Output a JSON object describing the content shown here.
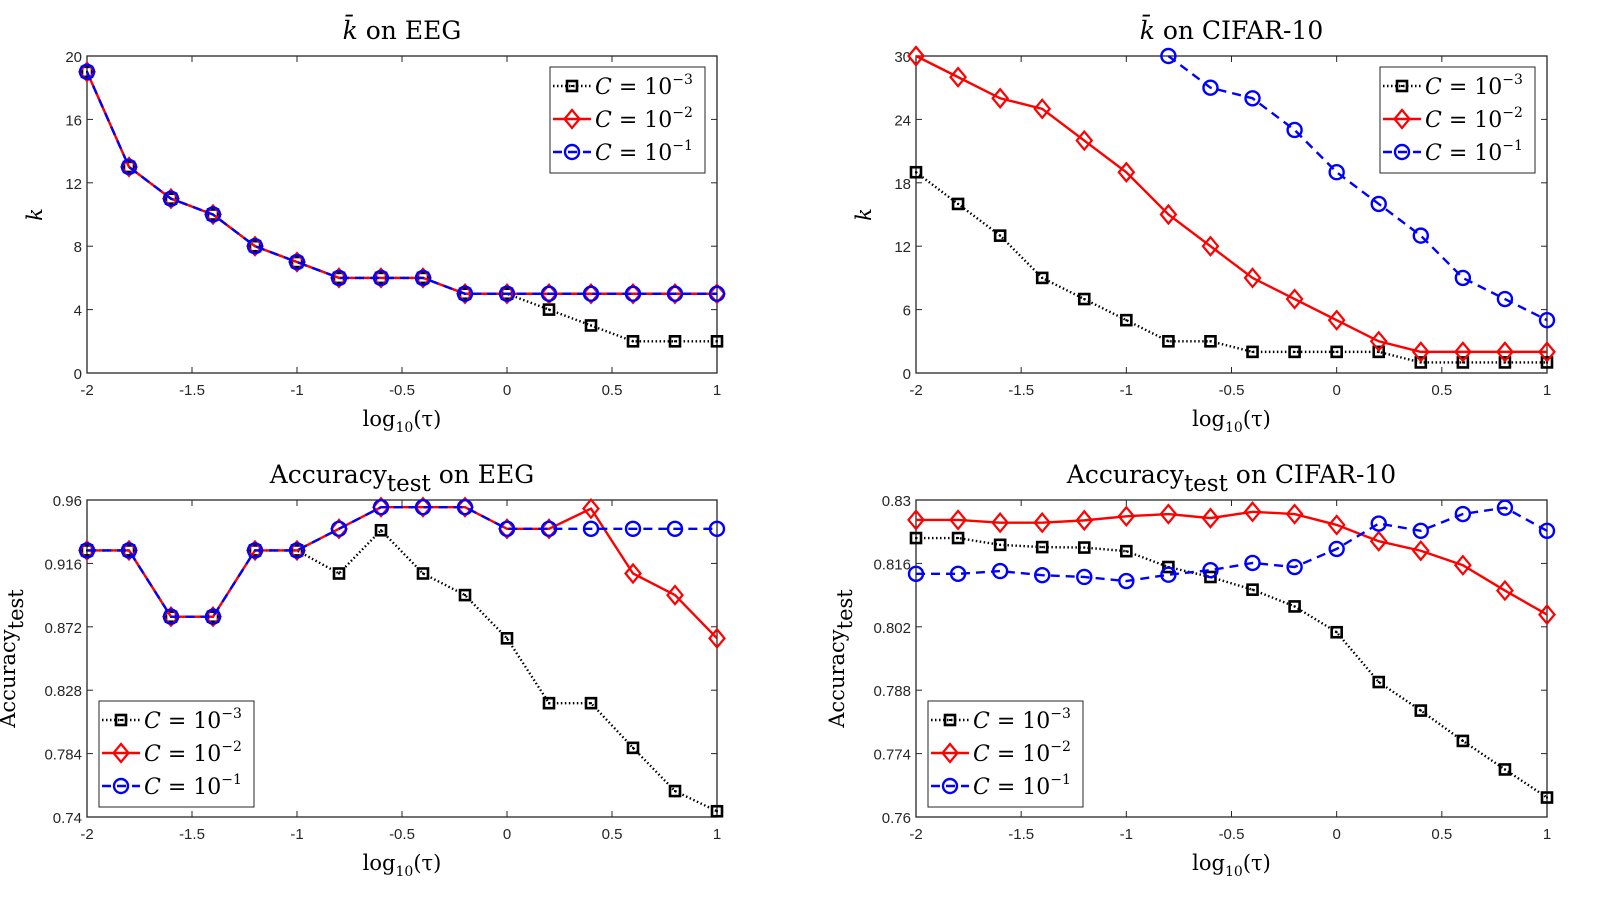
{
  "chart_data": [
    {
      "id": "k-eeg",
      "type": "line",
      "title": "k̄ on EEG",
      "title_parts": {
        "var": "k̄",
        "rest": " on EEG"
      },
      "xlabel": "log10(τ)",
      "xlabel_parts": {
        "base": "log",
        "sub": "10",
        "arg": "(τ)"
      },
      "ylabel": "k",
      "ylabel_parts": {
        "main": "k",
        "sub": ""
      },
      "xlim": [
        -2,
        1
      ],
      "ylim": [
        0,
        20
      ],
      "xticks": [
        -2,
        -1.5,
        -1,
        -0.5,
        0,
        0.5,
        1
      ],
      "xtick_labels": [
        "-2",
        "-1.5",
        "-1",
        "-0.5",
        "0",
        "0.5",
        "1"
      ],
      "yticks": [
        0,
        4,
        8,
        12,
        16,
        20
      ],
      "ytick_labels": [
        "0",
        "4",
        "8",
        "12",
        "16",
        "20"
      ],
      "grid": false,
      "legend_position": "top-right",
      "x": [
        -2,
        -1.8,
        -1.6,
        -1.4,
        -1.2,
        -1,
        -0.8,
        -0.6,
        -0.4,
        -0.2,
        0,
        0.2,
        0.4,
        0.6,
        0.8,
        1
      ],
      "series": [
        {
          "name": "C = 10^-3",
          "label_base": "C = 10",
          "label_exp": "−3",
          "color": "#000000",
          "marker": "square",
          "linestyle": "dotted",
          "values": [
            19,
            13,
            11,
            10,
            8,
            7,
            6,
            6,
            6,
            5,
            5,
            4,
            3,
            2,
            2,
            2
          ]
        },
        {
          "name": "C = 10^-2",
          "label_base": "C = 10",
          "label_exp": "−2",
          "color": "#ff0000",
          "marker": "diamond",
          "linestyle": "solid",
          "values": [
            19,
            13,
            11,
            10,
            8,
            7,
            6,
            6,
            6,
            5,
            5,
            5,
            5,
            5,
            5,
            5
          ]
        },
        {
          "name": "C = 10^-1",
          "label_base": "C = 10",
          "label_exp": "−1",
          "color": "#0000ff",
          "marker": "circle",
          "linestyle": "dashed",
          "values": [
            19,
            13,
            11,
            10,
            8,
            7,
            6,
            6,
            6,
            5,
            5,
            5,
            5,
            5,
            5,
            5
          ]
        }
      ]
    },
    {
      "id": "k-cifar",
      "type": "line",
      "title": "k̄ on CIFAR-10",
      "title_parts": {
        "var": "k̄",
        "rest": " on CIFAR-10"
      },
      "xlabel": "log10(τ)",
      "xlabel_parts": {
        "base": "log",
        "sub": "10",
        "arg": "(τ)"
      },
      "ylabel": "k",
      "ylabel_parts": {
        "main": "k",
        "sub": ""
      },
      "xlim": [
        -2,
        1
      ],
      "ylim": [
        0,
        30
      ],
      "xticks": [
        -2,
        -1.5,
        -1,
        -0.5,
        0,
        0.5,
        1
      ],
      "xtick_labels": [
        "-2",
        "-1.5",
        "-1",
        "-0.5",
        "0",
        "0.5",
        "1"
      ],
      "yticks": [
        0,
        6,
        12,
        18,
        24,
        30
      ],
      "ytick_labels": [
        "0",
        "6",
        "12",
        "18",
        "24",
        "30"
      ],
      "grid": false,
      "legend_position": "top-right",
      "x": [
        -2,
        -1.8,
        -1.6,
        -1.4,
        -1.2,
        -1,
        -0.8,
        -0.6,
        -0.4,
        -0.2,
        0,
        0.2,
        0.4,
        0.6,
        0.8,
        1
      ],
      "series": [
        {
          "name": "C = 10^-3",
          "label_base": "C = 10",
          "label_exp": "−3",
          "color": "#000000",
          "marker": "square",
          "linestyle": "dotted",
          "values": [
            19,
            16,
            13,
            9,
            7,
            5,
            3,
            3,
            2,
            2,
            2,
            2,
            1,
            1,
            1,
            1
          ]
        },
        {
          "name": "C = 10^-2",
          "label_base": "C = 10",
          "label_exp": "−2",
          "color": "#ff0000",
          "marker": "diamond",
          "linestyle": "solid",
          "values": [
            30,
            28,
            26,
            25,
            22,
            19,
            15,
            12,
            9,
            7,
            5,
            3,
            2,
            2,
            2,
            2
          ]
        },
        {
          "name": "C = 10^-1",
          "label_base": "C = 10",
          "label_exp": "−1",
          "color": "#0000ff",
          "marker": "circle",
          "linestyle": "dashed",
          "values": [
            null,
            null,
            null,
            null,
            null,
            null,
            30,
            27,
            26,
            23,
            19,
            16,
            13,
            9,
            7,
            5
          ]
        }
      ]
    },
    {
      "id": "acc-eeg",
      "type": "line",
      "title": "Accuracy_test on EEG",
      "title_parts": {
        "var": "Accuracy",
        "sub": "test",
        "rest": " on EEG"
      },
      "xlabel": "log10(τ)",
      "xlabel_parts": {
        "base": "log",
        "sub": "10",
        "arg": "(τ)"
      },
      "ylabel": "Accuracy_test",
      "ylabel_parts": {
        "main": "Accuracy",
        "sub": "test"
      },
      "xlim": [
        -2,
        1
      ],
      "ylim": [
        0.74,
        0.96
      ],
      "xticks": [
        -2,
        -1.5,
        -1,
        -0.5,
        0,
        0.5,
        1
      ],
      "xtick_labels": [
        "-2",
        "-1.5",
        "-1",
        "-0.5",
        "0",
        "0.5",
        "1"
      ],
      "yticks": [
        0.74,
        0.784,
        0.828,
        0.872,
        0.916,
        0.96
      ],
      "ytick_labels": [
        "0.74",
        "0.784",
        "0.828",
        "0.872",
        "0.916",
        "0.96"
      ],
      "grid": false,
      "legend_position": "bottom-left",
      "x": [
        -2,
        -1.8,
        -1.6,
        -1.4,
        -1.2,
        -1,
        -0.8,
        -0.6,
        -0.4,
        -0.2,
        0,
        0.2,
        0.4,
        0.6,
        0.8,
        1
      ],
      "series": [
        {
          "name": "C = 10^-3",
          "label_base": "C = 10",
          "label_exp": "−3",
          "color": "#000000",
          "marker": "square",
          "linestyle": "dotted",
          "values": [
            0.925,
            0.925,
            0.879,
            0.879,
            0.925,
            0.925,
            0.909,
            0.939,
            0.909,
            0.894,
            0.864,
            0.819,
            0.819,
            0.788,
            0.758,
            0.744
          ]
        },
        {
          "name": "C = 10^-2",
          "label_base": "C = 10",
          "label_exp": "−2",
          "color": "#ff0000",
          "marker": "diamond",
          "linestyle": "solid",
          "values": [
            0.925,
            0.925,
            0.879,
            0.879,
            0.925,
            0.925,
            0.94,
            0.955,
            0.955,
            0.955,
            0.94,
            0.94,
            0.954,
            0.909,
            0.894,
            0.864
          ]
        },
        {
          "name": "C = 10^-1",
          "label_base": "C = 10",
          "label_exp": "−1",
          "color": "#0000ff",
          "marker": "circle",
          "linestyle": "dashed",
          "values": [
            0.925,
            0.925,
            0.879,
            0.879,
            0.925,
            0.925,
            0.94,
            0.955,
            0.955,
            0.955,
            0.94,
            0.94,
            0.94,
            0.94,
            0.94,
            0.94
          ]
        }
      ]
    },
    {
      "id": "acc-cifar",
      "type": "line",
      "title": "Accuracy_test on CIFAR-10",
      "title_parts": {
        "var": "Accuracy",
        "sub": "test",
        "rest": " on CIFAR-10"
      },
      "xlabel": "log10(τ)",
      "xlabel_parts": {
        "base": "log",
        "sub": "10",
        "arg": "(τ)"
      },
      "ylabel": "Accuracy_test",
      "ylabel_parts": {
        "main": "Accuracy",
        "sub": "test"
      },
      "xlim": [
        -2,
        1
      ],
      "ylim": [
        0.76,
        0.83
      ],
      "xticks": [
        -2,
        -1.5,
        -1,
        -0.5,
        0,
        0.5,
        1
      ],
      "xtick_labels": [
        "-2",
        "-1.5",
        "-1",
        "-0.5",
        "0",
        "0.5",
        "1"
      ],
      "yticks": [
        0.76,
        0.774,
        0.788,
        0.802,
        0.816,
        0.83
      ],
      "ytick_labels": [
        "0.76",
        "0.774",
        "0.788",
        "0.802",
        "0.816",
        "0.83"
      ],
      "grid": false,
      "legend_position": "bottom-left",
      "x": [
        -2,
        -1.8,
        -1.6,
        -1.4,
        -1.2,
        -1,
        -0.8,
        -0.6,
        -0.4,
        -0.2,
        0,
        0.2,
        0.4,
        0.6,
        0.8,
        1
      ],
      "series": [
        {
          "name": "C = 10^-3",
          "label_base": "C = 10",
          "label_exp": "−3",
          "color": "#000000",
          "marker": "square",
          "linestyle": "dotted",
          "values": [
            0.8216,
            0.8216,
            0.8201,
            0.8196,
            0.8195,
            0.8187,
            0.8152,
            0.813,
            0.8102,
            0.8065,
            0.8008,
            0.7898,
            0.7835,
            0.7768,
            0.7705,
            0.7643
          ]
        },
        {
          "name": "C = 10^-2",
          "label_base": "C = 10",
          "label_exp": "−2",
          "color": "#ff0000",
          "marker": "diamond",
          "linestyle": "solid",
          "values": [
            0.8256,
            0.8256,
            0.825,
            0.825,
            0.8255,
            0.8264,
            0.8269,
            0.826,
            0.8274,
            0.8269,
            0.8245,
            0.8209,
            0.8188,
            0.8156,
            0.81,
            0.8047
          ]
        },
        {
          "name": "C = 10^-1",
          "label_base": "C = 10",
          "label_exp": "−1",
          "color": "#0000ff",
          "marker": "circle",
          "linestyle": "dashed",
          "values": [
            0.8137,
            0.8137,
            0.8143,
            0.8134,
            0.813,
            0.8121,
            0.8135,
            0.8145,
            0.8161,
            0.8152,
            0.8192,
            0.8248,
            0.8232,
            0.8269,
            0.8283,
            0.8232
          ]
        }
      ]
    }
  ]
}
